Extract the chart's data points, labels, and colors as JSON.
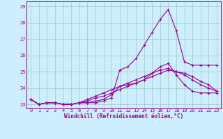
{
  "hours": [
    0,
    1,
    2,
    3,
    4,
    5,
    6,
    7,
    8,
    9,
    10,
    11,
    12,
    13,
    14,
    15,
    16,
    17,
    18,
    19,
    20,
    21,
    22,
    23
  ],
  "line1": [
    23.3,
    23.0,
    23.1,
    23.1,
    23.0,
    23.0,
    23.1,
    23.1,
    23.1,
    23.2,
    23.4,
    25.1,
    25.3,
    25.8,
    26.6,
    27.4,
    28.2,
    28.8,
    27.5,
    25.6,
    25.4,
    25.4,
    25.4,
    25.4
  ],
  "line2": [
    23.3,
    23.0,
    23.1,
    23.1,
    23.0,
    23.0,
    23.1,
    23.1,
    23.2,
    23.3,
    23.6,
    24.1,
    24.2,
    24.3,
    24.5,
    24.9,
    25.3,
    25.5,
    24.8,
    24.2,
    23.8,
    23.7,
    23.7,
    23.7
  ],
  "line3": [
    23.3,
    23.0,
    23.1,
    23.1,
    23.0,
    23.0,
    23.1,
    23.3,
    23.5,
    23.7,
    23.9,
    24.1,
    24.3,
    24.5,
    24.7,
    24.9,
    25.1,
    25.2,
    25.0,
    24.8,
    24.5,
    24.2,
    24.0,
    23.8
  ],
  "line4": [
    23.3,
    23.0,
    23.1,
    23.1,
    23.0,
    23.0,
    23.1,
    23.2,
    23.4,
    23.5,
    23.7,
    23.9,
    24.1,
    24.3,
    24.5,
    24.7,
    24.9,
    25.1,
    25.0,
    24.9,
    24.7,
    24.4,
    24.2,
    23.8
  ],
  "line_color": "#990099",
  "bg_color": "#cceeff",
  "grid_color": "#99ccbb",
  "xlabel": "Windchill (Refroidissement éolien,°C)",
  "ylim": [
    22.75,
    29.3
  ],
  "yticks": [
    23,
    24,
    25,
    26,
    27,
    28,
    29
  ],
  "xticks": [
    0,
    1,
    2,
    3,
    4,
    5,
    6,
    7,
    8,
    9,
    10,
    11,
    12,
    13,
    14,
    15,
    16,
    17,
    18,
    19,
    20,
    21,
    22,
    23
  ],
  "marker": "+"
}
